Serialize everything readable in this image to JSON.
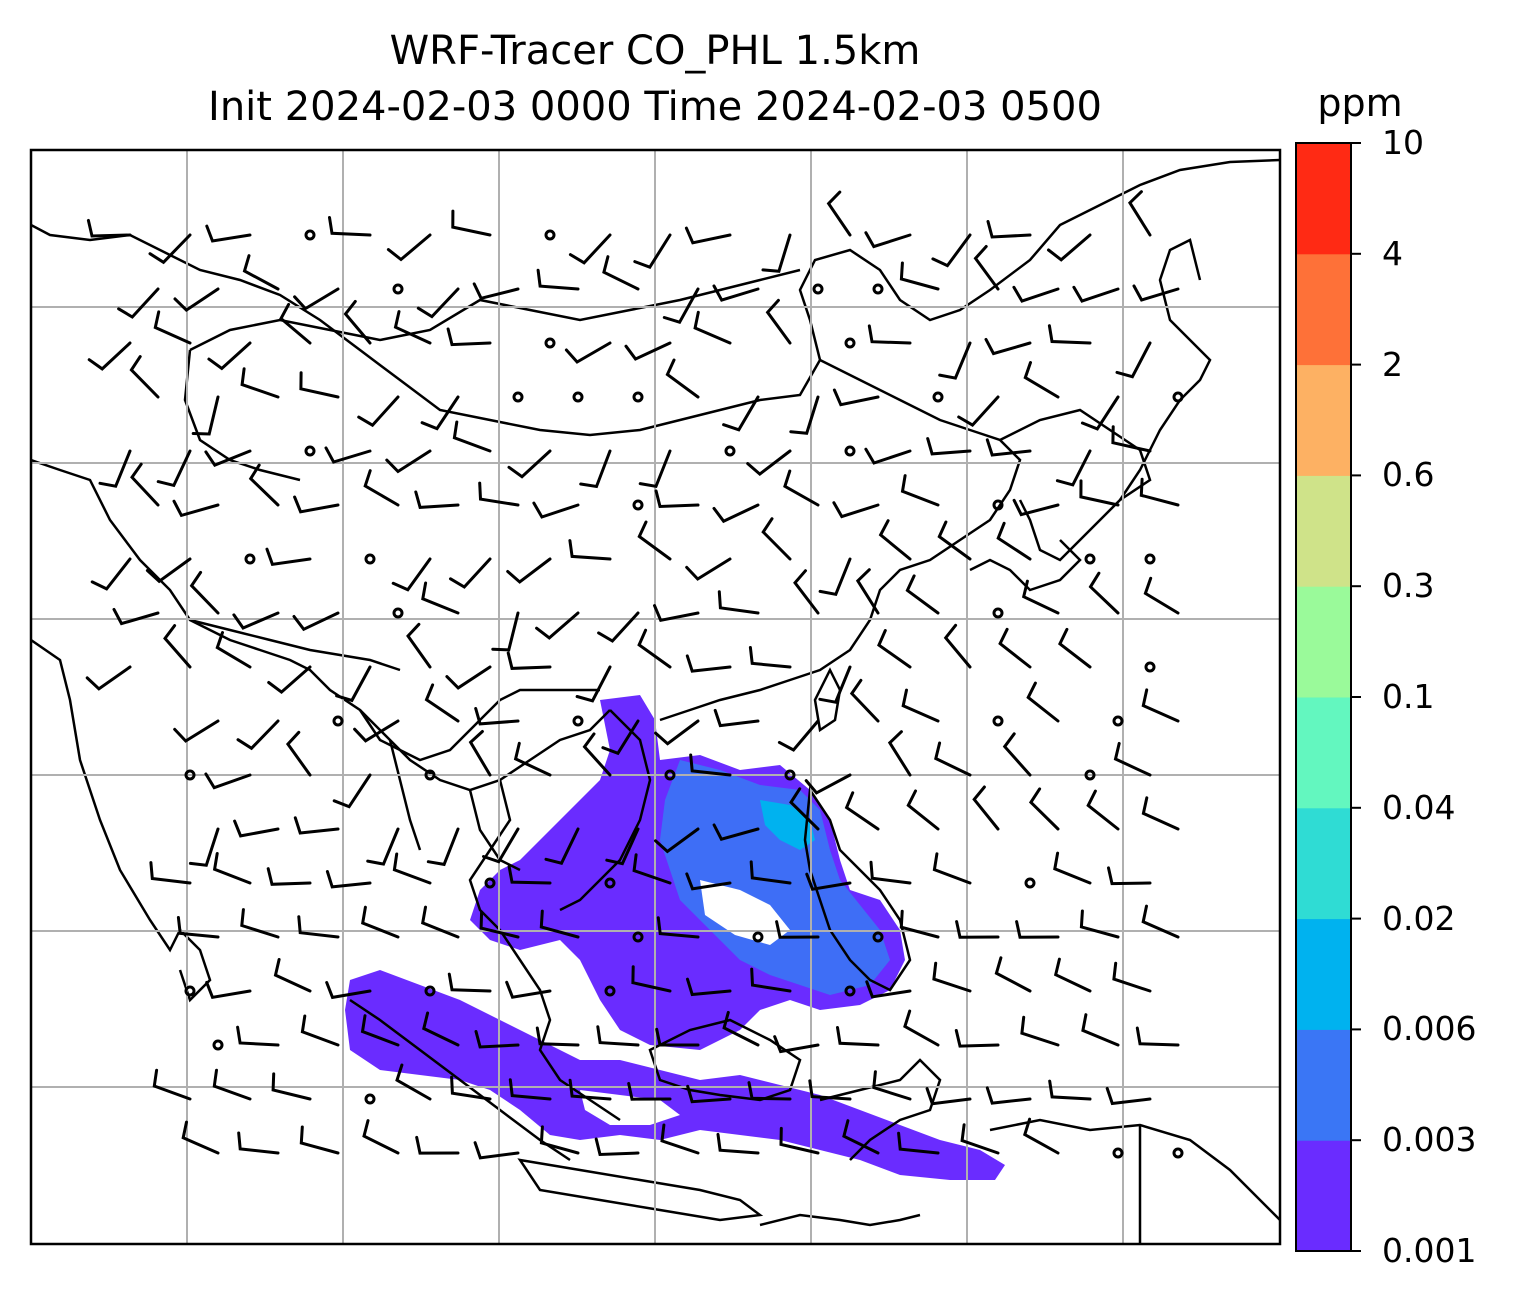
{
  "title": {
    "line1": "WRF-Tracer CO_PHL 1.5km",
    "line2": "Init 2024-02-03 0000 Time 2024-02-03 0500"
  },
  "colorbar": {
    "units": "ppm",
    "levels": [
      "0.001",
      "0.003",
      "0.006",
      "0.02",
      "0.04",
      "0.1",
      "0.3",
      "0.6",
      "2",
      "4",
      "10"
    ],
    "colors": [
      "#6a2cff",
      "#3a76f5",
      "#00b2ef",
      "#2fdcd4",
      "#63f7bf",
      "#9afa9a",
      "#cfe389",
      "#fdb163",
      "#fe7138",
      "#ff2a14"
    ]
  },
  "map": {
    "region": "East and Southeast Asia",
    "gridlines": true,
    "plume_color": "#6a2cff",
    "plume_core_color": "#3a76f5",
    "layers": [
      "coastlines",
      "wind-barbs",
      "tracer-concentration"
    ]
  }
}
